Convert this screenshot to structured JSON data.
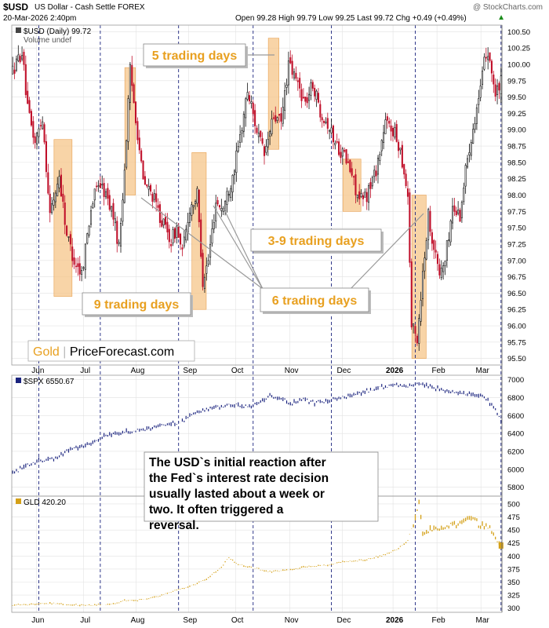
{
  "header": {
    "symbol": "$USD",
    "name": "US Dollar - Cash Settle FOREX",
    "watermark": "@ StockCharts.com",
    "date": "20-Mar-2026 2:40pm",
    "quote": "Open 99.28  High 99.79  Low 99.25  Last 99.72  Chg +0.49 (+0.49%)",
    "quote_arrow": "▲"
  },
  "chart_data": [
    {
      "type": "candlestick",
      "legend": "$USD (Daily) 99.72",
      "sublegend": "Volume undef",
      "ylim": [
        95.4,
        100.6
      ],
      "yticks": [
        95.5,
        95.75,
        96.0,
        96.25,
        96.5,
        96.75,
        97.0,
        97.25,
        97.5,
        97.75,
        98.0,
        98.25,
        98.5,
        98.75,
        99.0,
        99.25,
        99.5,
        99.75,
        100.0,
        100.25,
        100.5
      ],
      "ytick_labels": [
        "95.50",
        "95.75",
        "96.00",
        "96.25",
        "96.50",
        "96.75",
        "97.00",
        "97.25",
        "97.50",
        "97.75",
        "98.00",
        "98.25",
        "98.50",
        "98.75",
        "99.00",
        "99.25",
        "99.50",
        "99.75",
        "100.00",
        "100.25",
        "100.50"
      ],
      "anchors": [
        [
          0,
          99.9
        ],
        [
          5,
          100.2
        ],
        [
          8,
          99.3
        ],
        [
          12,
          98.8
        ],
        [
          16,
          99.2
        ],
        [
          20,
          97.7
        ],
        [
          25,
          98.3
        ],
        [
          29,
          97.4
        ],
        [
          33,
          97.0
        ],
        [
          37,
          96.8
        ],
        [
          42,
          97.8
        ],
        [
          46,
          98.2
        ],
        [
          50,
          98.0
        ],
        [
          54,
          97.7
        ],
        [
          57,
          97.2
        ],
        [
          60,
          98.4
        ],
        [
          63,
          99.9
        ],
        [
          66,
          99.2
        ],
        [
          70,
          98.2
        ],
        [
          75,
          98.0
        ],
        [
          80,
          97.6
        ],
        [
          85,
          97.3
        ],
        [
          88,
          97.5
        ],
        [
          91,
          97.1
        ],
        [
          95,
          97.8
        ],
        [
          99,
          98.0
        ],
        [
          102,
          96.7
        ],
        [
          105,
          97.0
        ],
        [
          109,
          97.9
        ],
        [
          113,
          97.8
        ],
        [
          117,
          98.2
        ],
        [
          121,
          98.7
        ],
        [
          126,
          99.6
        ],
        [
          131,
          99.0
        ],
        [
          135,
          98.6
        ],
        [
          140,
          99.2
        ],
        [
          144,
          99.1
        ],
        [
          148,
          100.0
        ],
        [
          153,
          99.7
        ],
        [
          157,
          99.4
        ],
        [
          161,
          99.7
        ],
        [
          165,
          99.3
        ],
        [
          169,
          99.1
        ],
        [
          173,
          98.8
        ],
        [
          178,
          98.6
        ],
        [
          182,
          98.3
        ],
        [
          186,
          97.9
        ],
        [
          190,
          98.0
        ],
        [
          195,
          98.4
        ],
        [
          200,
          99.1
        ],
        [
          204,
          99.0
        ],
        [
          208,
          98.7
        ],
        [
          212,
          98.0
        ],
        [
          214,
          96.0
        ],
        [
          217,
          95.8
        ],
        [
          220,
          96.8
        ],
        [
          223,
          97.7
        ],
        [
          226,
          97.2
        ],
        [
          229,
          96.8
        ],
        [
          232,
          97.0
        ],
        [
          236,
          97.8
        ],
        [
          240,
          97.7
        ],
        [
          244,
          98.6
        ],
        [
          248,
          99.2
        ],
        [
          251,
          99.6
        ],
        [
          254,
          100.2
        ],
        [
          256,
          100.1
        ],
        [
          259,
          99.5
        ],
        [
          262,
          99.72
        ]
      ],
      "n_days": 263,
      "highlight_boxes": [
        {
          "start": 23,
          "end": 31,
          "low": 96.45,
          "high": 98.85
        },
        {
          "start": 61,
          "end": 65,
          "low": 98.0,
          "high": 99.95
        },
        {
          "start": 97,
          "end": 103,
          "low": 96.25,
          "high": 98.65
        },
        {
          "start": 138,
          "end": 142,
          "low": 98.7,
          "high": 100.4
        },
        {
          "start": 178,
          "end": 186,
          "low": 97.75,
          "high": 98.55
        },
        {
          "start": 215,
          "end": 221,
          "low": 95.5,
          "high": 98.0
        }
      ],
      "annotations": [
        {
          "label": "5 trading days"
        },
        {
          "label": "3-9 trading days"
        },
        {
          "label": "9 trading days"
        },
        {
          "label": "6 trading days"
        }
      ],
      "brand": {
        "gold": "Gold",
        "rest": "PriceForecast.com"
      }
    },
    {
      "type": "line",
      "legend": "$SPX 6550.67",
      "yticks": [
        5800,
        6000,
        6200,
        6400,
        6600,
        6800,
        7000
      ],
      "ytick_labels": [
        "5800",
        "6000",
        "6200",
        "6400",
        "6600",
        "6800",
        "7000"
      ],
      "anchors": [
        [
          0,
          5960
        ],
        [
          6,
          6020
        ],
        [
          14,
          6100
        ],
        [
          20,
          6110
        ],
        [
          25,
          6140
        ],
        [
          30,
          6220
        ],
        [
          40,
          6270
        ],
        [
          50,
          6380
        ],
        [
          60,
          6420
        ],
        [
          70,
          6440
        ],
        [
          80,
          6490
        ],
        [
          90,
          6520
        ],
        [
          96,
          6620
        ],
        [
          100,
          6640
        ],
        [
          108,
          6690
        ],
        [
          118,
          6720
        ],
        [
          126,
          6700
        ],
        [
          132,
          6740
        ],
        [
          138,
          6820
        ],
        [
          142,
          6800
        ],
        [
          150,
          6740
        ],
        [
          156,
          6780
        ],
        [
          162,
          6740
        ],
        [
          168,
          6760
        ],
        [
          174,
          6790
        ],
        [
          180,
          6820
        ],
        [
          186,
          6850
        ],
        [
          192,
          6880
        ],
        [
          198,
          6920
        ],
        [
          206,
          6940
        ],
        [
          212,
          6930
        ],
        [
          218,
          6950
        ],
        [
          224,
          6930
        ],
        [
          232,
          6880
        ],
        [
          240,
          6850
        ],
        [
          248,
          6830
        ],
        [
          254,
          6790
        ],
        [
          258,
          6700
        ],
        [
          262,
          6551
        ]
      ]
    },
    {
      "type": "line",
      "legend": "GLD 420.20",
      "yticks": [
        300,
        325,
        350,
        375,
        400,
        425,
        450,
        475,
        500
      ],
      "ytick_labels": [
        "300",
        "325",
        "350",
        "375",
        "400",
        "425",
        "450",
        "475",
        "500"
      ],
      "anchors": [
        [
          0,
          306
        ],
        [
          20,
          309
        ],
        [
          40,
          305
        ],
        [
          55,
          308
        ],
        [
          60,
          315
        ],
        [
          70,
          316
        ],
        [
          78,
          322
        ],
        [
          88,
          335
        ],
        [
          96,
          343
        ],
        [
          104,
          355
        ],
        [
          112,
          378
        ],
        [
          116,
          398
        ],
        [
          120,
          385
        ],
        [
          128,
          378
        ],
        [
          138,
          370
        ],
        [
          148,
          373
        ],
        [
          158,
          380
        ],
        [
          168,
          382
        ],
        [
          178,
          389
        ],
        [
          188,
          392
        ],
        [
          198,
          400
        ],
        [
          206,
          412
        ],
        [
          212,
          430
        ],
        [
          216,
          475
        ],
        [
          218,
          505
        ],
        [
          220,
          445
        ],
        [
          224,
          452
        ],
        [
          232,
          455
        ],
        [
          240,
          462
        ],
        [
          246,
          470
        ],
        [
          252,
          458
        ],
        [
          256,
          454
        ],
        [
          260,
          432
        ],
        [
          262,
          420
        ]
      ]
    }
  ],
  "x_axis_labels": [
    "Jun",
    "Jul",
    "Aug",
    "Sep",
    "Oct",
    "Nov",
    "Dec",
    "2026",
    "Feb",
    "Mar"
  ],
  "fed_lines": [
    14,
    47,
    89,
    129,
    171,
    216,
    262
  ],
  "callout": "The USD`s initial reaction after the Fed`s interest rate decision usually lasted about a week or two. It often triggered a reversal.",
  "colors": {
    "up": "#111111",
    "down": "#c0102a",
    "spx": "#1a237e",
    "gld": "#d4a017",
    "highlight": "#f6c68a",
    "annotation_text": "#e8a020",
    "fed_line": "#1a237e",
    "grid": "#e2e2e2"
  }
}
